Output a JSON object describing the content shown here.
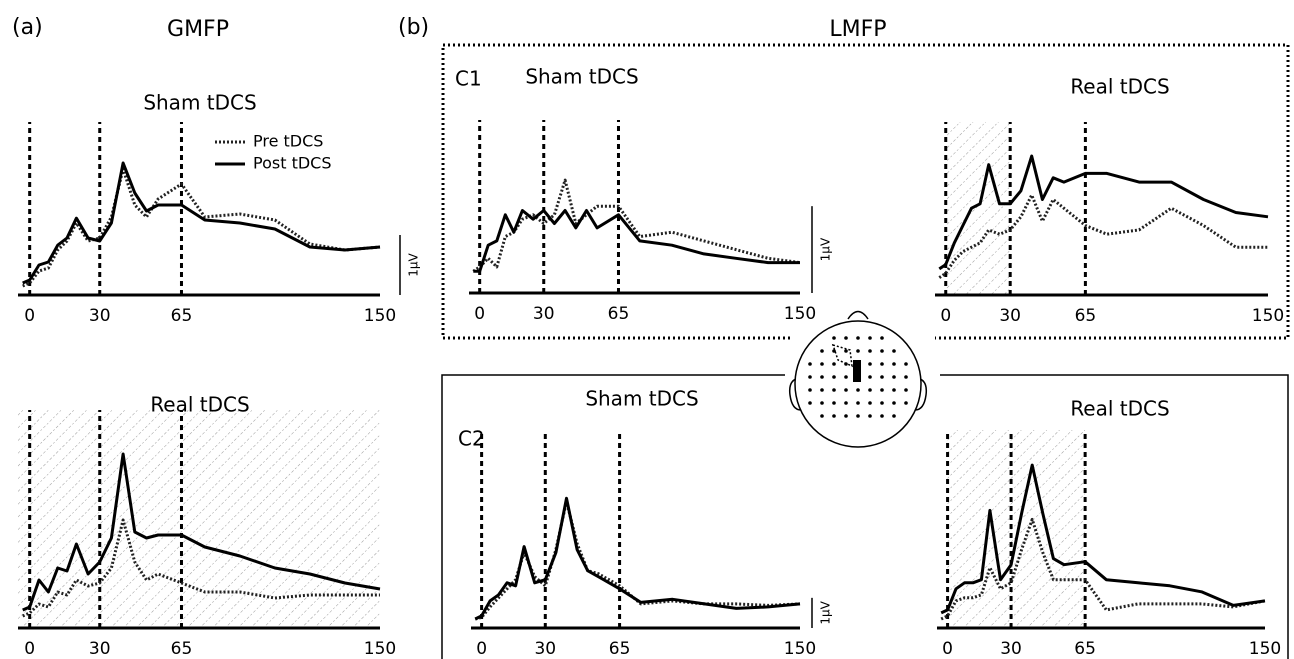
{
  "figure": {
    "label_a": "(a)",
    "title_a": "GMFP",
    "label_b": "(b)",
    "title_b": "LMFP"
  },
  "chart_data": [
    {
      "type": "line",
      "title": "Sham tDCS",
      "legend": "upper right",
      "xlim": [
        -5,
        150
      ],
      "xticks": [
        0,
        30,
        65,
        150
      ],
      "vlines": [
        0,
        30,
        65
      ],
      "ylim": [
        0,
        2.75
      ],
      "scale_bar": {
        "value": 1,
        "label": "1µV"
      },
      "x": [
        -3,
        0,
        4,
        8,
        12,
        16,
        20,
        25,
        30,
        35,
        40,
        45,
        50,
        55,
        65,
        75,
        90,
        105,
        120,
        135,
        150
      ],
      "series": [
        {
          "name": "Pre tDCS",
          "color": "#222222",
          "style": "dotted",
          "values": [
            0.15,
            0.2,
            0.4,
            0.45,
            0.75,
            0.9,
            1.2,
            0.9,
            0.95,
            1.3,
            2.1,
            1.5,
            1.3,
            1.6,
            1.85,
            1.3,
            1.35,
            1.25,
            0.85,
            0.75,
            0.8
          ]
        },
        {
          "name": "Post tDCS",
          "color": "#000000",
          "style": "solid",
          "values": [
            0.2,
            0.25,
            0.5,
            0.55,
            0.83,
            0.95,
            1.28,
            0.95,
            0.9,
            1.2,
            2.2,
            1.7,
            1.4,
            1.5,
            1.5,
            1.25,
            1.2,
            1.1,
            0.8,
            0.75,
            0.8
          ]
        }
      ]
    },
    {
      "type": "line",
      "title": "Real tDCS",
      "xlim": [
        -5,
        150
      ],
      "xticks": [
        0,
        30,
        65,
        150
      ],
      "vlines": [
        0,
        30,
        65
      ],
      "ylim": [
        0,
        3.5
      ],
      "hatch": [
        -5,
        150
      ],
      "x": [
        -3,
        0,
        4,
        8,
        12,
        16,
        20,
        25,
        30,
        35,
        40,
        45,
        50,
        55,
        65,
        75,
        90,
        105,
        120,
        135,
        150
      ],
      "series": [
        {
          "color": "#222222",
          "style": "dotted",
          "values": [
            0.2,
            0.25,
            0.4,
            0.35,
            0.6,
            0.55,
            0.8,
            0.7,
            0.75,
            1.0,
            1.8,
            1.1,
            0.8,
            0.9,
            0.75,
            0.6,
            0.6,
            0.5,
            0.55,
            0.55,
            0.55
          ]
        },
        {
          "color": "#000000",
          "style": "solid",
          "values": [
            0.3,
            0.35,
            0.8,
            0.6,
            1.0,
            0.95,
            1.4,
            0.9,
            1.1,
            1.5,
            2.9,
            1.6,
            1.5,
            1.55,
            1.55,
            1.35,
            1.2,
            1.0,
            0.9,
            0.75,
            0.65
          ]
        }
      ]
    },
    {
      "type": "line",
      "title": "Sham tDCS",
      "panel": "C1",
      "xlim": [
        -5,
        150
      ],
      "xticks": [
        0,
        30,
        65,
        150
      ],
      "vlines": [
        0,
        30,
        65
      ],
      "ylim": [
        0,
        1.9
      ],
      "scale_bar": {
        "value": 1,
        "label": "1µV"
      },
      "x": [
        -3,
        0,
        4,
        8,
        12,
        16,
        20,
        25,
        30,
        35,
        40,
        45,
        50,
        55,
        65,
        75,
        90,
        105,
        120,
        135,
        150
      ],
      "series": [
        {
          "color": "#222222",
          "style": "dotted",
          "values": [
            0.25,
            0.3,
            0.4,
            0.3,
            0.65,
            0.7,
            0.85,
            0.9,
            0.8,
            0.9,
            1.3,
            0.8,
            0.9,
            1.0,
            1.0,
            0.65,
            0.7,
            0.6,
            0.5,
            0.4,
            0.35
          ]
        },
        {
          "color": "#000000",
          "style": "solid",
          "values": [
            0.25,
            0.25,
            0.55,
            0.6,
            0.9,
            0.7,
            0.95,
            0.85,
            0.95,
            0.8,
            0.95,
            0.75,
            0.95,
            0.75,
            0.9,
            0.6,
            0.55,
            0.45,
            0.4,
            0.35,
            0.35
          ]
        }
      ]
    },
    {
      "type": "line",
      "title": "Real tDCS",
      "xlim": [
        -5,
        150
      ],
      "xticks": [
        0,
        30,
        65,
        150
      ],
      "vlines": [
        0,
        30,
        65
      ],
      "ylim": [
        0,
        1.9
      ],
      "hatch": [
        0,
        30
      ],
      "x": [
        -3,
        0,
        4,
        8,
        12,
        16,
        20,
        25,
        30,
        35,
        40,
        45,
        50,
        55,
        65,
        75,
        90,
        105,
        120,
        135,
        150
      ],
      "series": [
        {
          "color": "#222222",
          "style": "dotted",
          "values": [
            0.2,
            0.25,
            0.4,
            0.5,
            0.55,
            0.6,
            0.75,
            0.7,
            0.75,
            0.9,
            1.15,
            0.85,
            1.1,
            1.0,
            0.8,
            0.7,
            0.75,
            1.0,
            0.8,
            0.55,
            0.55
          ]
        },
        {
          "color": "#000000",
          "style": "solid",
          "values": [
            0.3,
            0.35,
            0.6,
            0.8,
            1.0,
            1.05,
            1.5,
            1.05,
            1.05,
            1.2,
            1.6,
            1.1,
            1.35,
            1.3,
            1.4,
            1.4,
            1.3,
            1.3,
            1.1,
            0.95,
            0.9
          ]
        }
      ]
    },
    {
      "type": "line",
      "title": "Sham tDCS",
      "panel": "C2",
      "xlim": [
        -5,
        150
      ],
      "xticks": [
        0,
        30,
        65,
        150
      ],
      "vlines": [
        0,
        30,
        65
      ],
      "ylim": [
        0,
        6.3
      ],
      "scale_bar": {
        "value": 1,
        "label": "1µV"
      },
      "x": [
        -3,
        0,
        4,
        8,
        12,
        16,
        20,
        25,
        30,
        35,
        40,
        45,
        50,
        55,
        65,
        75,
        90,
        105,
        120,
        135,
        150
      ],
      "series": [
        {
          "color": "#222222",
          "style": "dotted",
          "values": [
            0.3,
            0.35,
            0.7,
            1.0,
            1.3,
            1.6,
            2.5,
            1.7,
            1.4,
            2.6,
            4.2,
            2.8,
            1.9,
            1.8,
            1.4,
            0.8,
            0.9,
            0.8,
            0.8,
            0.75,
            0.8
          ]
        },
        {
          "color": "#000000",
          "style": "solid",
          "values": [
            0.3,
            0.4,
            0.9,
            1.1,
            1.5,
            1.4,
            2.7,
            1.5,
            1.6,
            2.5,
            4.3,
            2.6,
            1.9,
            1.7,
            1.3,
            0.85,
            0.95,
            0.8,
            0.65,
            0.7,
            0.8
          ]
        }
      ]
    },
    {
      "type": "line",
      "title": "Real tDCS",
      "xlim": [
        -5,
        150
      ],
      "xticks": [
        0,
        30,
        65,
        150
      ],
      "vlines": [
        0,
        30,
        65
      ],
      "ylim": [
        0,
        6.3
      ],
      "hatch": [
        0,
        65
      ],
      "x": [
        -3,
        0,
        4,
        8,
        12,
        16,
        20,
        25,
        30,
        35,
        40,
        45,
        50,
        55,
        65,
        75,
        90,
        105,
        120,
        135,
        150
      ],
      "series": [
        {
          "color": "#222222",
          "style": "dotted",
          "values": [
            0.3,
            0.4,
            0.9,
            1.0,
            1.0,
            1.1,
            2.0,
            1.3,
            1.5,
            2.6,
            3.6,
            2.5,
            1.6,
            1.6,
            1.6,
            0.6,
            0.8,
            0.8,
            0.8,
            0.7,
            0.9
          ]
        },
        {
          "color": "#000000",
          "style": "solid",
          "values": [
            0.5,
            0.6,
            1.3,
            1.5,
            1.5,
            1.6,
            3.9,
            1.6,
            2.1,
            3.8,
            5.4,
            3.8,
            2.3,
            2.1,
            2.2,
            1.6,
            1.5,
            1.4,
            1.2,
            0.75,
            0.9
          ]
        }
      ]
    }
  ]
}
